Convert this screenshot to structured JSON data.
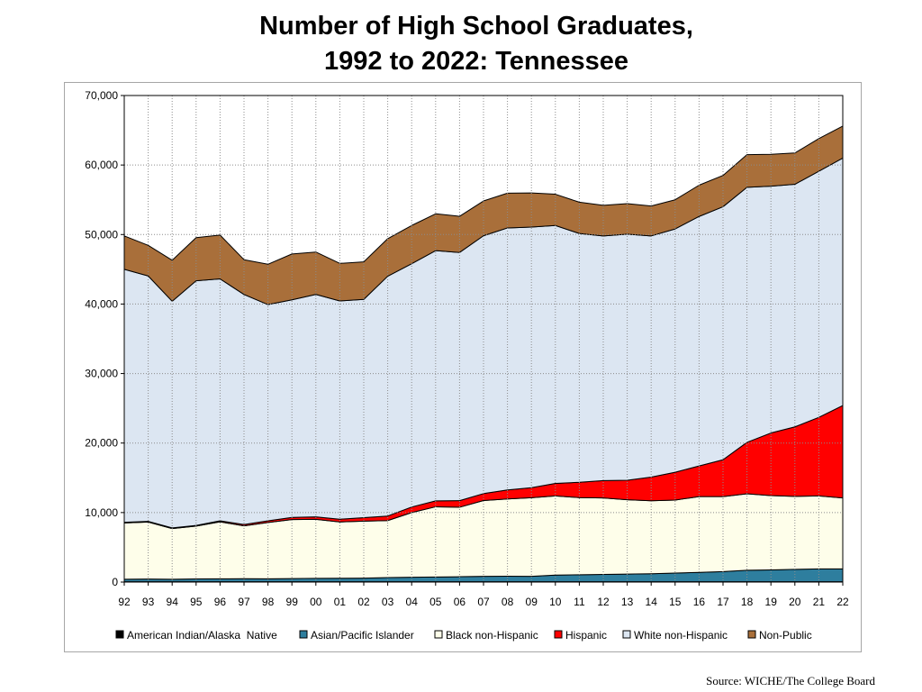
{
  "title_line1": "Number of High School Graduates,",
  "title_line2": "1992 to 2022:  Tennessee",
  "source": "Source: WICHE/The College Board",
  "chart_data": {
    "type": "area",
    "stacked": true,
    "title": "Number of High School Graduates, 1992 to 2022:  Tennessee",
    "xlabel": "",
    "ylabel": "",
    "ylim": [
      0,
      70000
    ],
    "y_ticks": [
      "0",
      "10,000",
      "20,000",
      "30,000",
      "40,000",
      "50,000",
      "60,000",
      "70,000"
    ],
    "y_tick_values": [
      0,
      10000,
      20000,
      30000,
      40000,
      50000,
      60000,
      70000
    ],
    "grid": true,
    "legend_position": "bottom",
    "categories": [
      "92",
      "93",
      "94",
      "95",
      "96",
      "97",
      "98",
      "99",
      "00",
      "01",
      "02",
      "03",
      "04",
      "05",
      "06",
      "07",
      "08",
      "09",
      "10",
      "11",
      "12",
      "13",
      "14",
      "15",
      "16",
      "17",
      "18",
      "19",
      "20",
      "21",
      "22"
    ],
    "series": [
      {
        "name": "American Indian/Alaska  Native",
        "color": "#000000",
        "values": [
          50,
          50,
          50,
          50,
          50,
          50,
          50,
          50,
          50,
          50,
          50,
          50,
          50,
          50,
          50,
          50,
          50,
          50,
          50,
          50,
          50,
          50,
          50,
          50,
          50,
          50,
          50,
          50,
          50,
          50,
          50
        ]
      },
      {
        "name": "Asian/Pacific Islander",
        "color": "#2e7e9e",
        "values": [
          350,
          380,
          350,
          400,
          420,
          430,
          420,
          450,
          480,
          500,
          520,
          600,
          650,
          680,
          720,
          780,
          800,
          780,
          950,
          1000,
          1050,
          1100,
          1150,
          1250,
          1350,
          1450,
          1650,
          1700,
          1780,
          1850,
          1850
        ]
      },
      {
        "name": "Black non-Hispanic",
        "color": "#fefeea",
        "values": [
          8100,
          8200,
          7300,
          7600,
          8200,
          7600,
          8100,
          8500,
          8500,
          8100,
          8200,
          8200,
          9300,
          10100,
          10000,
          10900,
          11100,
          11300,
          11400,
          11100,
          11000,
          10700,
          10500,
          10500,
          10900,
          10800,
          11000,
          10700,
          10500,
          10500,
          10200
        ]
      },
      {
        "name": "Hispanic",
        "color": "#ff0000",
        "values": [
          100,
          110,
          100,
          100,
          150,
          200,
          250,
          300,
          350,
          400,
          500,
          650,
          800,
          850,
          950,
          1000,
          1300,
          1450,
          1800,
          2200,
          2500,
          2800,
          3400,
          4000,
          4400,
          5300,
          7400,
          9000,
          10000,
          11300,
          13300
        ]
      },
      {
        "name": "White non-Hispanic",
        "color": "#dce6f2",
        "values": [
          36400,
          35300,
          32600,
          35200,
          34800,
          33100,
          31100,
          31300,
          32000,
          31400,
          31400,
          34500,
          35000,
          36000,
          35700,
          37100,
          37700,
          37500,
          37100,
          35800,
          35200,
          35400,
          34700,
          35000,
          35900,
          36400,
          36700,
          35500,
          34900,
          35400,
          35600
        ]
      },
      {
        "name": "Non-Public",
        "color": "#a96f3a",
        "values": [
          4800,
          4400,
          5900,
          6200,
          6300,
          5000,
          5800,
          6600,
          6100,
          5400,
          5400,
          5400,
          5500,
          5300,
          5200,
          5000,
          5000,
          4900,
          4500,
          4500,
          4400,
          4400,
          4300,
          4200,
          4500,
          4500,
          4700,
          4600,
          4500,
          4700,
          4600
        ]
      }
    ]
  }
}
